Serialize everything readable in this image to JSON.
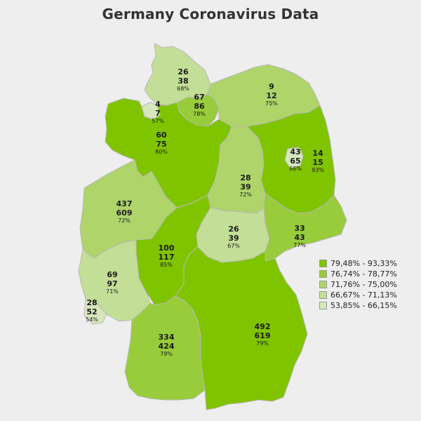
{
  "title": "Germany Coronavirus Data",
  "legend": [
    {
      "range": "79,48% - 93,33%",
      "color": "#80c400"
    },
    {
      "range": "76,74% - 78,77%",
      "color": "#98cc3a"
    },
    {
      "range": "71,76% - 75,00%",
      "color": "#aed46a"
    },
    {
      "range": "66,67% - 71,13%",
      "color": "#c3de96"
    },
    {
      "range": "53,85% - 66,15%",
      "color": "#d6e7bc"
    }
  ],
  "states": [
    {
      "id": "sh",
      "line1": "26",
      "line2": "38",
      "pct": "68%",
      "fill": "#c3de96"
    },
    {
      "id": "hh",
      "line1": "67",
      "line2": "86",
      "pct": "78%",
      "fill": "#98cc3a"
    },
    {
      "id": "mv",
      "line1": "9",
      "line2": "12",
      "pct": "75%",
      "fill": "#aed46a"
    },
    {
      "id": "hb",
      "line1": "4",
      "line2": "7",
      "pct": "57%",
      "fill": "#d6e7bc"
    },
    {
      "id": "ni",
      "line1": "60",
      "line2": "75",
      "pct": "80%",
      "fill": "#80c400"
    },
    {
      "id": "be",
      "line1": "43",
      "line2": "65",
      "pct": "66%",
      "fill": "#d6e7bc"
    },
    {
      "id": "bb",
      "line1": "14",
      "line2": "15",
      "pct": "93%",
      "fill": "#80c400"
    },
    {
      "id": "st",
      "line1": "28",
      "line2": "39",
      "pct": "72%",
      "fill": "#aed46a"
    },
    {
      "id": "nw",
      "line1": "437",
      "line2": "609",
      "pct": "72%",
      "fill": "#aed46a"
    },
    {
      "id": "th",
      "line1": "26",
      "line2": "39",
      "pct": "67%",
      "fill": "#c3de96"
    },
    {
      "id": "sn",
      "line1": "33",
      "line2": "43",
      "pct": "77%",
      "fill": "#98cc3a"
    },
    {
      "id": "he",
      "line1": "100",
      "line2": "117",
      "pct": "85%",
      "fill": "#80c400"
    },
    {
      "id": "rp",
      "line1": "69",
      "line2": "97",
      "pct": "71%",
      "fill": "#c3de96"
    },
    {
      "id": "sl",
      "line1": "28",
      "line2": "52",
      "pct": "54%",
      "fill": "#d6e7bc"
    },
    {
      "id": "bw",
      "line1": "334",
      "line2": "424",
      "pct": "79%",
      "fill": "#98cc3a"
    },
    {
      "id": "by",
      "line1": "492",
      "line2": "619",
      "pct": "79%",
      "fill": "#80c400"
    }
  ]
}
